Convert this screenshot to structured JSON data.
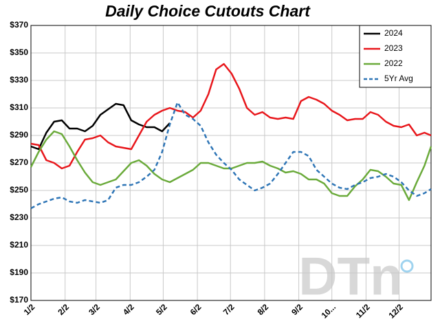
{
  "chart_data": {
    "type": "line",
    "title": "Daily Choice Cutouts Chart",
    "x": [
      "1/2",
      "1/9",
      "1/16",
      "1/23",
      "1/30",
      "2/6",
      "2/13",
      "2/20",
      "2/27",
      "3/6",
      "3/13",
      "3/20",
      "3/27",
      "4/3",
      "4/10",
      "4/17",
      "4/24",
      "5/1",
      "5/8",
      "5/15",
      "5/22",
      "5/29",
      "6/5",
      "6/12",
      "6/19",
      "6/26",
      "7/3",
      "7/10",
      "7/17",
      "7/24",
      "7/31",
      "8/7",
      "8/14",
      "8/21",
      "8/28",
      "9/4",
      "9/11",
      "9/18",
      "9/25",
      "10/2",
      "10/9",
      "10/16",
      "10/23",
      "10/30",
      "11/6",
      "11/13",
      "11/20",
      "11/27",
      "12/4",
      "12/11",
      "12/18",
      "12/25",
      "12/31"
    ],
    "xlim": [
      "1/2",
      "12/31"
    ],
    "xticks": [
      "1/2",
      "2/2",
      "3/2",
      "4/2",
      "5/2",
      "6/2",
      "7/2",
      "8/2",
      "9/2",
      {
        "value": "10/2",
        "label": "10..."
      },
      "11/2",
      "12/2"
    ],
    "ylim": [
      170,
      370
    ],
    "yticks": [
      {
        "value": 170,
        "label": "$170"
      },
      {
        "value": 190,
        "label": "$190"
      },
      {
        "value": 210,
        "label": "$210"
      },
      {
        "value": 230,
        "label": "$230"
      },
      {
        "value": 250,
        "label": "$250"
      },
      {
        "value": 270,
        "label": "$270"
      },
      {
        "value": 290,
        "label": "$290"
      },
      {
        "value": 310,
        "label": "$310"
      },
      {
        "value": 330,
        "label": "$330"
      },
      {
        "value": 350,
        "label": "$350"
      },
      {
        "value": 370,
        "label": "$370"
      }
    ],
    "grid": true,
    "legend": "top-right",
    "watermark": "DTn",
    "series": [
      {
        "name": "2024",
        "color": "#000000",
        "dashed": false,
        "values": [
          282,
          280,
          292,
          300,
          301,
          295,
          295,
          293,
          297,
          305,
          309,
          313,
          312,
          301,
          298,
          296,
          296,
          293,
          299,
          null,
          null,
          null,
          null,
          null,
          null,
          null,
          null,
          null,
          null,
          null,
          null,
          null,
          null,
          null,
          null,
          null,
          null,
          null,
          null,
          null,
          null,
          null,
          null,
          null,
          null,
          null,
          null,
          null,
          null,
          null,
          null,
          null,
          null
        ]
      },
      {
        "name": "2023",
        "color": "#e8161b",
        "dashed": false,
        "values": [
          284,
          283,
          272,
          270,
          266,
          268,
          278,
          287,
          288,
          290,
          285,
          282,
          281,
          280,
          290,
          300,
          305,
          308,
          310,
          308,
          307,
          303,
          308,
          320,
          338,
          342,
          335,
          324,
          310,
          305,
          307,
          303,
          302,
          303,
          302,
          315,
          318,
          316,
          313,
          308,
          305,
          301,
          302,
          302,
          307,
          305,
          300,
          297,
          296,
          298,
          290,
          292,
          290
        ]
      },
      {
        "name": "2022",
        "color": "#6aaa3a",
        "dashed": false,
        "values": [
          267,
          278,
          287,
          293,
          291,
          282,
          272,
          263,
          256,
          254,
          256,
          258,
          264,
          270,
          272,
          268,
          262,
          258,
          256,
          259,
          262,
          265,
          270,
          270,
          268,
          266,
          266,
          268,
          270,
          270,
          271,
          268,
          266,
          263,
          264,
          262,
          258,
          258,
          255,
          248,
          246,
          246,
          253,
          258,
          265,
          264,
          260,
          255,
          254,
          243,
          256,
          268,
          282
        ]
      },
      {
        "name": "5Yr Avg",
        "color": "#2e75b6",
        "dashed": true,
        "values": [
          237,
          240,
          242,
          244,
          245,
          242,
          241,
          243,
          242,
          241,
          243,
          252,
          254,
          254,
          256,
          260,
          265,
          278,
          298,
          314,
          305,
          302,
          297,
          285,
          276,
          270,
          265,
          258,
          254,
          250,
          252,
          255,
          262,
          270,
          278,
          278,
          275,
          265,
          260,
          255,
          252,
          251,
          254,
          256,
          259,
          260,
          262,
          260,
          256,
          250,
          246,
          248,
          251
        ]
      }
    ]
  }
}
